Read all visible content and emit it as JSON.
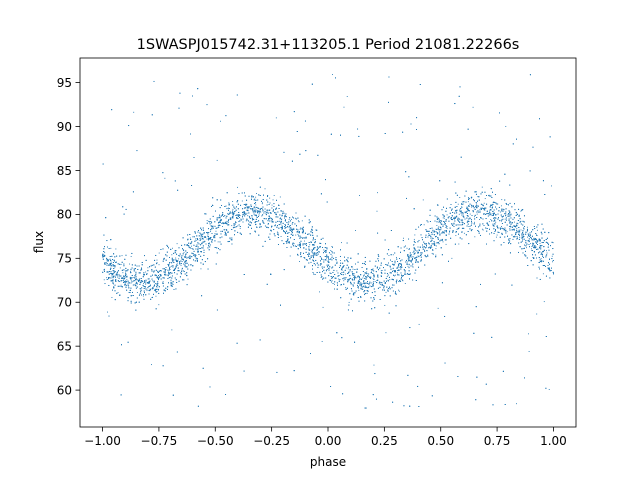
{
  "chart_data": {
    "type": "scatter",
    "title": "1SWASPJ015742.31+113205.1 Period 21081.22266s",
    "xlabel": "phase",
    "ylabel": "flux",
    "xlim": [
      -1.1,
      1.1
    ],
    "ylim": [
      55.8,
      97.8
    ],
    "xticks": [
      -1.0,
      -0.75,
      -0.5,
      -0.25,
      0.0,
      0.25,
      0.5,
      0.75,
      1.0
    ],
    "xtick_labels": [
      "−1.00",
      "−0.75",
      "−0.50",
      "−0.25",
      "0.00",
      "0.25",
      "0.50",
      "0.75",
      "1.00"
    ],
    "yticks": [
      60,
      65,
      70,
      75,
      80,
      85,
      90,
      95
    ],
    "ytick_labels": [
      "60",
      "65",
      "70",
      "75",
      "80",
      "85",
      "90",
      "95"
    ],
    "grid": false,
    "legend": "none",
    "point_color": "#1f77b4",
    "phase_range": [
      -1.0,
      1.0
    ],
    "curve": {
      "description_units": "flux vs phase, periodic with period 1",
      "mean": 76.3,
      "amplitude": 3.9,
      "minimum_phase": 0.17,
      "maximum_phase": -0.33,
      "min_flux": 72.4,
      "max_flux": 80.2,
      "scatter_sd": 1.2
    },
    "outliers": {
      "flux_range": [
        57.5,
        96.0
      ],
      "fraction": 0.06
    },
    "n_points": 9000
  }
}
